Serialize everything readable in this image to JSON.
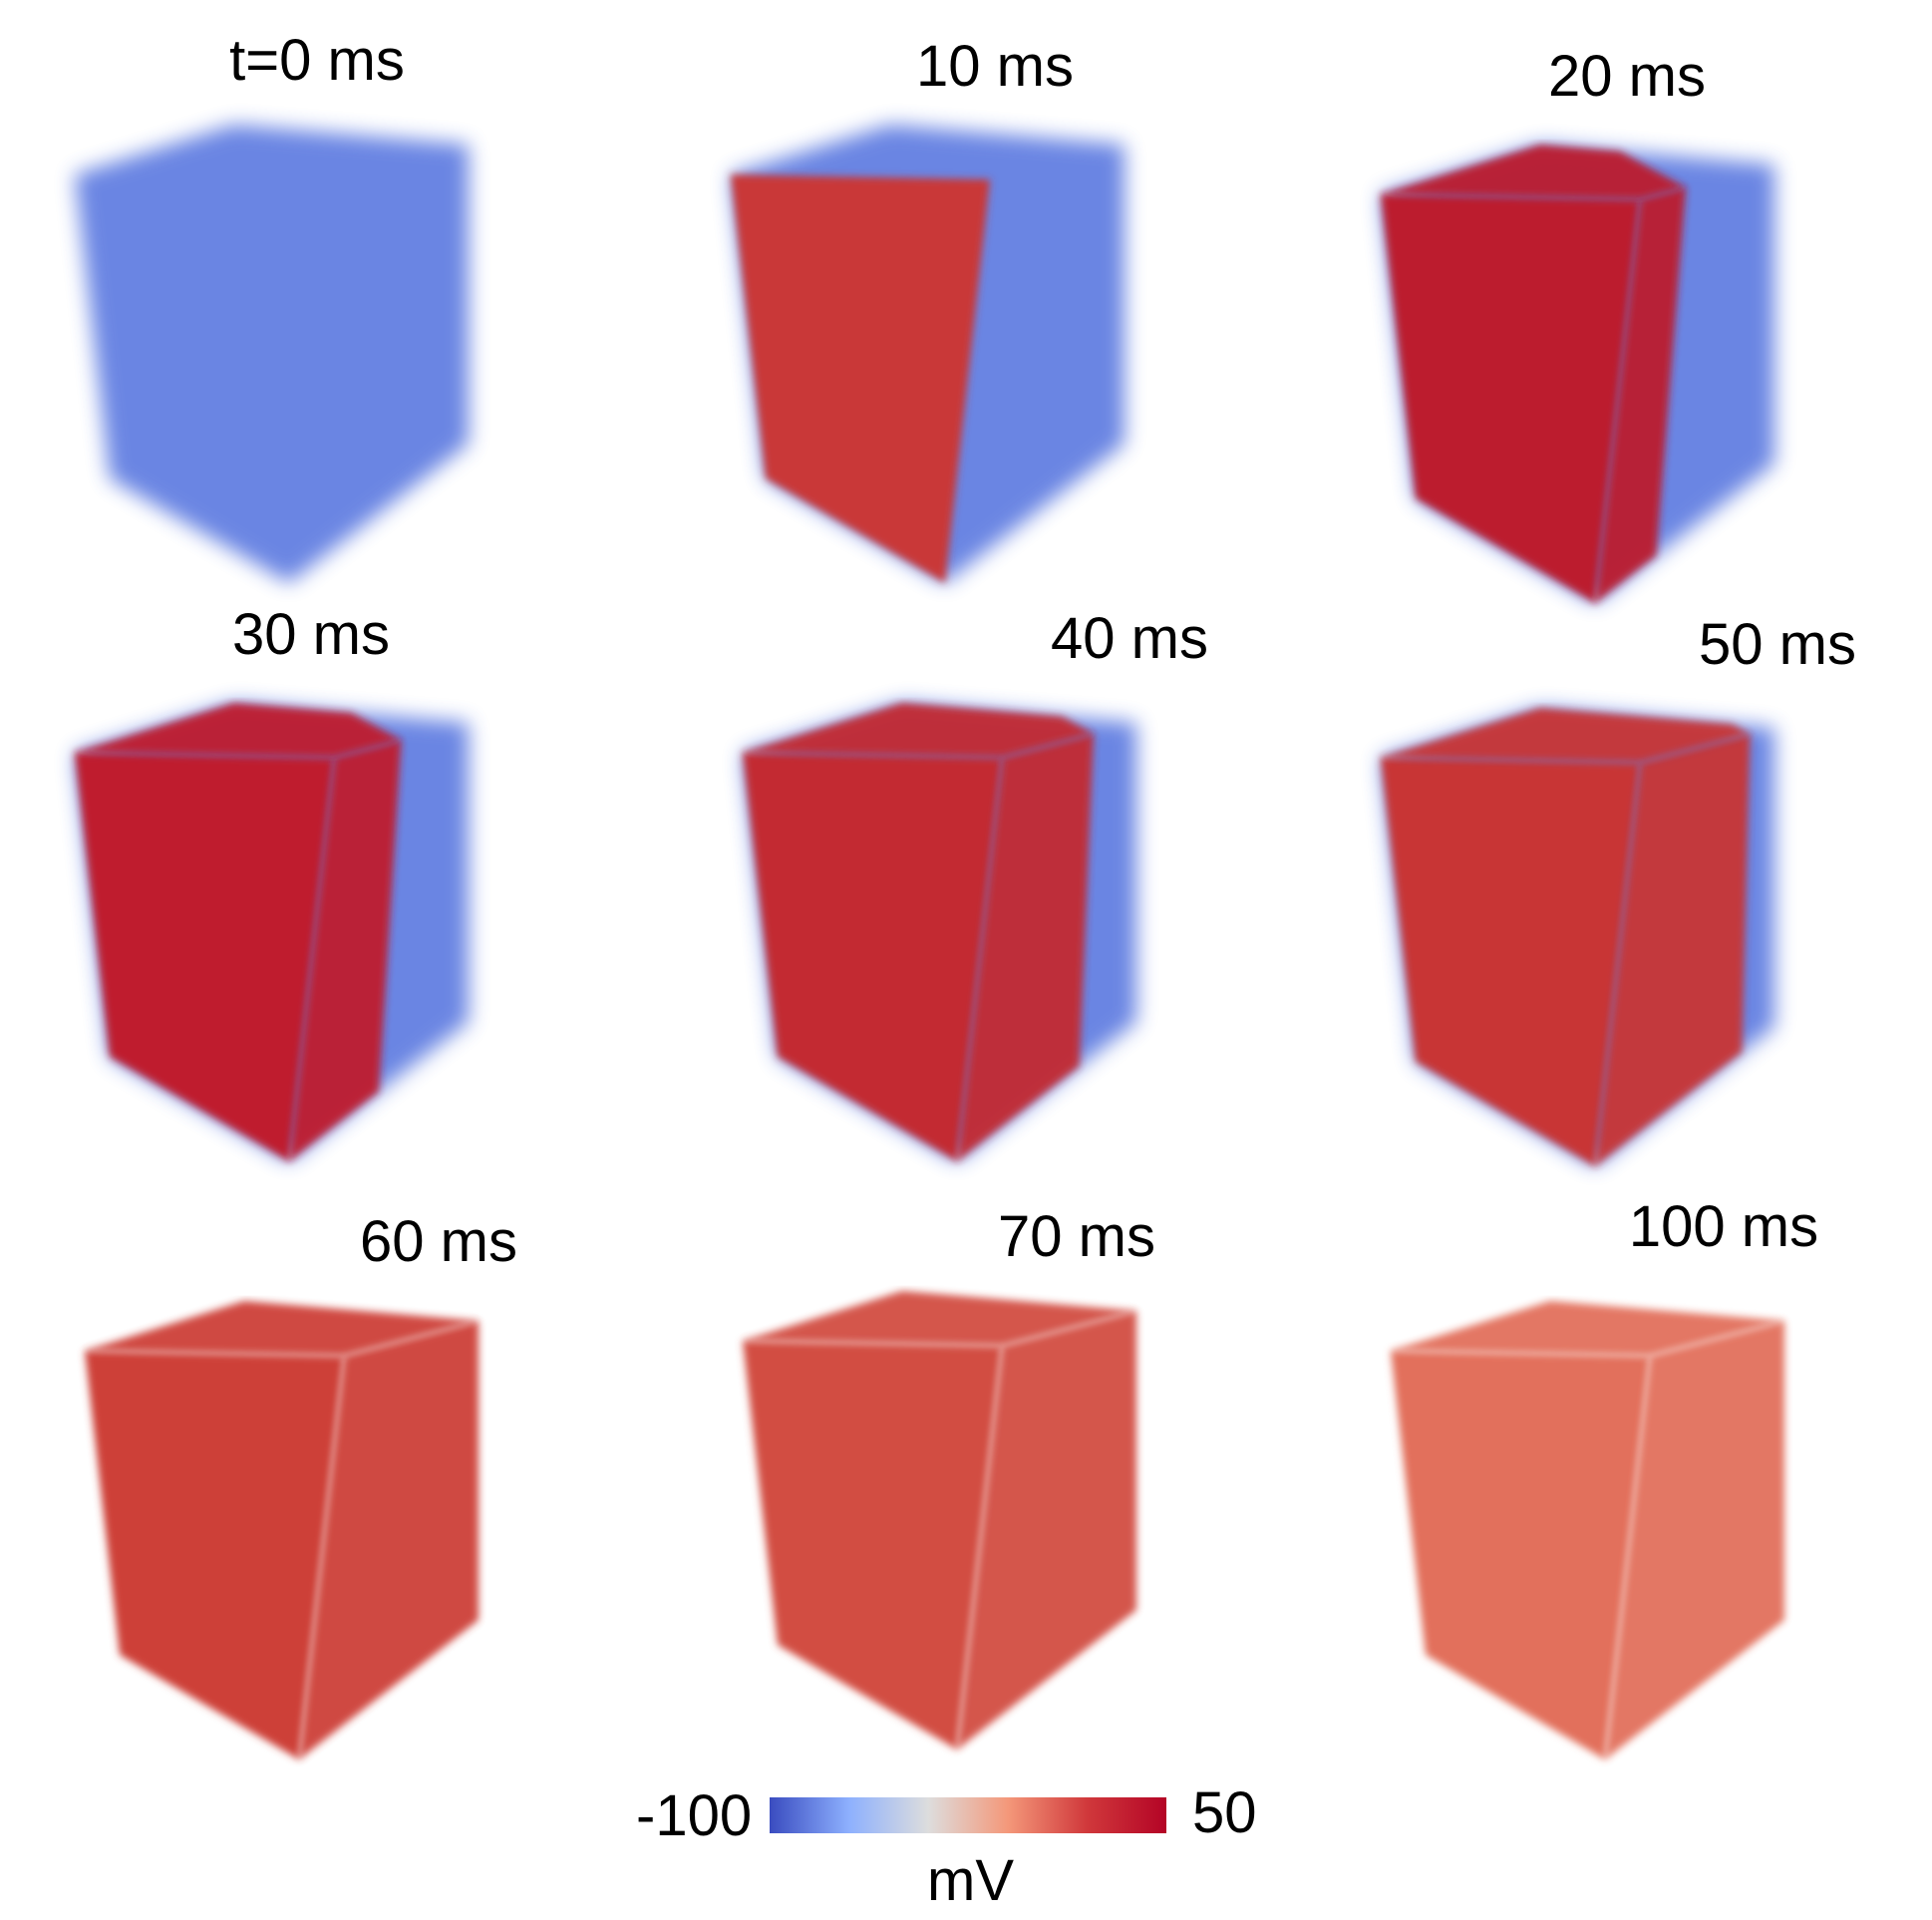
{
  "figure": {
    "panels": [
      {
        "label": "t=0 ms",
        "frac": 0.0,
        "red": "#c0404a",
        "blue": "#5a78e0"
      },
      {
        "label": "10 ms",
        "frac": 0.56,
        "red": "#c93838",
        "blue": "#5a78e0"
      },
      {
        "label": "20 ms",
        "frac": 0.71,
        "red": "#bc1f2e",
        "blue": "#5a78e0"
      },
      {
        "label": "30 ms",
        "frac": 0.78,
        "red": "#bf1f2e",
        "blue": "#5a78e0"
      },
      {
        "label": "40 ms",
        "frac": 0.86,
        "red": "#c32a31",
        "blue": "#5a78e0"
      },
      {
        "label": "50 ms",
        "frac": 0.92,
        "red": "#c83536",
        "blue": "#5a78e0"
      },
      {
        "label": "60 ms",
        "frac": 1.0,
        "red": "#cd4038",
        "blue": "#5a78e0"
      },
      {
        "label": "70 ms",
        "frac": 1.0,
        "red": "#d24e42",
        "blue": "#5a78e0"
      },
      {
        "label": "100 ms",
        "frac": 1.0,
        "red": "#e2705c",
        "blue": "#5a78e0"
      }
    ]
  },
  "colorbar": {
    "min_label": "-100",
    "max_label": "50",
    "unit_label": "mV",
    "stops": [
      "#3a4cc0",
      "#8db0fe",
      "#dddddd",
      "#f4987a",
      "#d0383b",
      "#b40426"
    ]
  }
}
